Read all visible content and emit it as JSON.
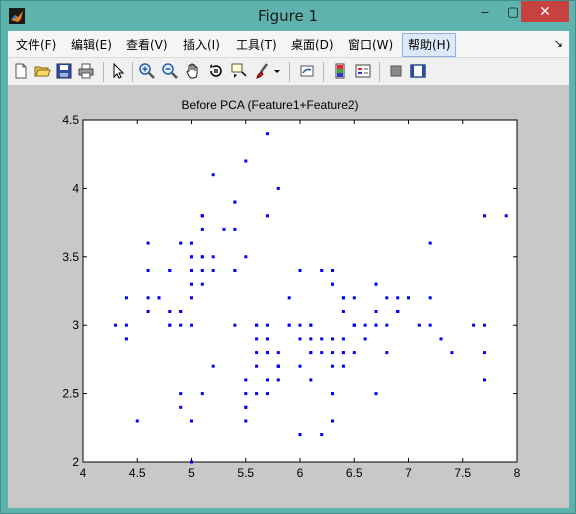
{
  "window": {
    "title": "Figure 1",
    "min_glyph": "–",
    "max_glyph": "▢",
    "close_glyph": "✕"
  },
  "menu": {
    "items": [
      {
        "label": "文件(F)"
      },
      {
        "label": "编辑(E)"
      },
      {
        "label": "查看(V)"
      },
      {
        "label": "插入(I)"
      },
      {
        "label": "工具(T)"
      },
      {
        "label": "桌面(D)"
      },
      {
        "label": "窗口(W)"
      },
      {
        "label": "帮助(H)"
      }
    ],
    "more_glyph": "↘"
  },
  "toolbar": {
    "icons": [
      "new-figure-icon",
      "open-file-icon",
      "save-icon",
      "print-icon",
      "edit-plot-icon",
      "zoom-in-icon",
      "zoom-out-icon",
      "pan-icon",
      "rotate-3d-icon",
      "data-cursor-icon",
      "brush-icon",
      "link-plot-icon",
      "colorbar-icon",
      "legend-icon",
      "hide-plot-tools-icon",
      "show-plot-tools-icon"
    ]
  },
  "colors": {
    "marker": "#0000ff",
    "axes_bg": "#ffffff",
    "figure_bg": "#c8c8c8"
  },
  "chart_data": {
    "type": "scatter",
    "title": "Before PCA (Feature1+Feature2)",
    "xlabel": "",
    "ylabel": "",
    "xlim": [
      4,
      8
    ],
    "ylim": [
      2,
      4.5
    ],
    "xticks": [
      "4",
      "4.5",
      "5",
      "5.5",
      "6",
      "6.5",
      "7",
      "7.5",
      "8"
    ],
    "yticks": [
      "2",
      "2.5",
      "3",
      "3.5",
      "4",
      "4.5"
    ],
    "grid": false,
    "marker": "dot",
    "points": [
      [
        5.1,
        3.5
      ],
      [
        4.9,
        3.0
      ],
      [
        4.7,
        3.2
      ],
      [
        4.6,
        3.1
      ],
      [
        5.0,
        3.6
      ],
      [
        5.4,
        3.9
      ],
      [
        4.6,
        3.4
      ],
      [
        5.0,
        3.4
      ],
      [
        4.4,
        2.9
      ],
      [
        4.9,
        3.1
      ],
      [
        5.4,
        3.7
      ],
      [
        4.8,
        3.4
      ],
      [
        4.8,
        3.0
      ],
      [
        4.3,
        3.0
      ],
      [
        5.8,
        4.0
      ],
      [
        5.7,
        4.4
      ],
      [
        5.4,
        3.9
      ],
      [
        5.1,
        3.5
      ],
      [
        5.7,
        3.8
      ],
      [
        5.1,
        3.8
      ],
      [
        5.4,
        3.4
      ],
      [
        5.1,
        3.7
      ],
      [
        4.6,
        3.6
      ],
      [
        5.1,
        3.3
      ],
      [
        4.8,
        3.4
      ],
      [
        5.0,
        3.0
      ],
      [
        5.0,
        3.4
      ],
      [
        5.2,
        3.5
      ],
      [
        5.2,
        3.4
      ],
      [
        4.7,
        3.2
      ],
      [
        4.8,
        3.1
      ],
      [
        5.4,
        3.4
      ],
      [
        5.2,
        4.1
      ],
      [
        5.5,
        4.2
      ],
      [
        4.9,
        3.1
      ],
      [
        5.0,
        3.2
      ],
      [
        5.5,
        3.5
      ],
      [
        4.9,
        3.6
      ],
      [
        4.4,
        3.0
      ],
      [
        5.1,
        3.4
      ],
      [
        5.0,
        3.5
      ],
      [
        4.5,
        2.3
      ],
      [
        4.4,
        3.2
      ],
      [
        5.0,
        3.5
      ],
      [
        5.1,
        3.8
      ],
      [
        4.8,
        3.0
      ],
      [
        5.1,
        3.8
      ],
      [
        4.6,
        3.2
      ],
      [
        5.3,
        3.7
      ],
      [
        5.0,
        3.3
      ],
      [
        7.0,
        3.2
      ],
      [
        6.4,
        3.2
      ],
      [
        6.9,
        3.1
      ],
      [
        5.5,
        2.3
      ],
      [
        6.5,
        2.8
      ],
      [
        5.7,
        2.8
      ],
      [
        6.3,
        3.3
      ],
      [
        4.9,
        2.4
      ],
      [
        6.6,
        2.9
      ],
      [
        5.2,
        2.7
      ],
      [
        5.0,
        2.0
      ],
      [
        5.9,
        3.0
      ],
      [
        6.0,
        2.2
      ],
      [
        6.1,
        2.9
      ],
      [
        5.6,
        2.9
      ],
      [
        6.7,
        3.1
      ],
      [
        5.6,
        3.0
      ],
      [
        5.8,
        2.7
      ],
      [
        6.2,
        2.2
      ],
      [
        5.6,
        2.5
      ],
      [
        5.9,
        3.2
      ],
      [
        6.1,
        2.8
      ],
      [
        6.3,
        2.5
      ],
      [
        6.1,
        2.8
      ],
      [
        6.4,
        2.9
      ],
      [
        6.6,
        3.0
      ],
      [
        6.8,
        2.8
      ],
      [
        6.7,
        3.0
      ],
      [
        6.0,
        2.9
      ],
      [
        5.7,
        2.6
      ],
      [
        5.5,
        2.4
      ],
      [
        5.5,
        2.4
      ],
      [
        5.8,
        2.7
      ],
      [
        6.0,
        2.7
      ],
      [
        5.4,
        3.0
      ],
      [
        6.0,
        3.4
      ],
      [
        6.7,
        3.1
      ],
      [
        6.3,
        2.3
      ],
      [
        5.6,
        3.0
      ],
      [
        5.5,
        2.5
      ],
      [
        5.5,
        2.6
      ],
      [
        6.1,
        3.0
      ],
      [
        5.8,
        2.6
      ],
      [
        5.0,
        2.3
      ],
      [
        5.6,
        2.7
      ],
      [
        5.7,
        3.0
      ],
      [
        5.7,
        2.9
      ],
      [
        6.2,
        2.9
      ],
      [
        5.1,
        2.5
      ],
      [
        5.7,
        2.8
      ],
      [
        6.3,
        3.3
      ],
      [
        5.8,
        2.7
      ],
      [
        7.1,
        3.0
      ],
      [
        6.3,
        2.9
      ],
      [
        6.5,
        3.0
      ],
      [
        7.6,
        3.0
      ],
      [
        4.9,
        2.5
      ],
      [
        7.3,
        2.9
      ],
      [
        6.7,
        2.5
      ],
      [
        7.2,
        3.6
      ],
      [
        6.5,
        3.2
      ],
      [
        6.4,
        2.7
      ],
      [
        6.8,
        3.0
      ],
      [
        5.7,
        2.5
      ],
      [
        5.8,
        2.8
      ],
      [
        6.4,
        3.2
      ],
      [
        6.5,
        3.0
      ],
      [
        7.7,
        3.8
      ],
      [
        7.7,
        2.6
      ],
      [
        6.0,
        2.2
      ],
      [
        6.9,
        3.2
      ],
      [
        5.6,
        2.8
      ],
      [
        7.7,
        2.8
      ],
      [
        6.3,
        2.7
      ],
      [
        6.7,
        3.3
      ],
      [
        7.2,
        3.2
      ],
      [
        6.2,
        2.8
      ],
      [
        6.1,
        3.0
      ],
      [
        6.4,
        2.8
      ],
      [
        7.2,
        3.0
      ],
      [
        7.4,
        2.8
      ],
      [
        7.9,
        3.8
      ],
      [
        6.4,
        2.8
      ],
      [
        6.3,
        2.8
      ],
      [
        6.1,
        2.6
      ],
      [
        7.7,
        3.0
      ],
      [
        6.3,
        3.4
      ],
      [
        6.4,
        3.1
      ],
      [
        6.0,
        3.0
      ],
      [
        6.9,
        3.1
      ],
      [
        6.7,
        3.1
      ],
      [
        6.9,
        3.1
      ],
      [
        5.8,
        2.7
      ],
      [
        6.8,
        3.2
      ],
      [
        6.7,
        3.3
      ],
      [
        6.7,
        3.0
      ],
      [
        6.3,
        2.5
      ],
      [
        6.5,
        3.0
      ],
      [
        6.2,
        3.4
      ],
      [
        5.9,
        3.0
      ]
    ]
  }
}
